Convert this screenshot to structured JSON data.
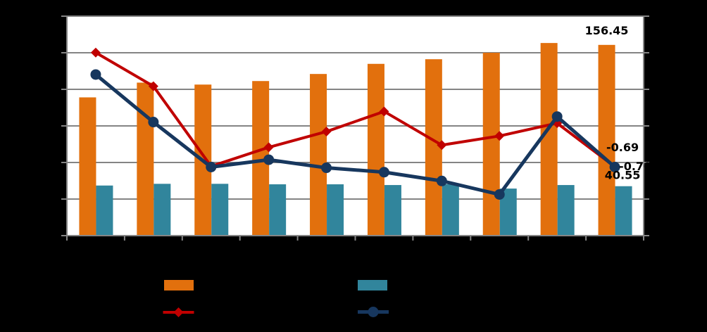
{
  "chart_data": {
    "type": "combo-bar-line",
    "n_groups": 10,
    "axes": {
      "primary_ylim": [
        0,
        180
      ],
      "primary_gridline_interval": 30,
      "secondary_ylim": [
        -2.575,
        3.425
      ],
      "gridlines": "horizontal",
      "axis_tick_labels_visible": false,
      "category_labels_visible": false
    },
    "colors": {
      "background": "#000000",
      "plot_background": "#FFFFFF",
      "grid": "#848484",
      "orange": "#E2700D",
      "teal": "#31859C",
      "red": "#C00000",
      "navy": "#17375E",
      "label_text": "#000000"
    },
    "series": [
      {
        "id": "orange-bars",
        "type": "bar",
        "axis": "primary",
        "color_key": "orange",
        "values": [
          113.4,
          125.5,
          123.9,
          126.8,
          132.6,
          140.9,
          144.7,
          150.0,
          158.0,
          156.45
        ]
      },
      {
        "id": "teal-bars",
        "type": "bar",
        "axis": "primary",
        "color_key": "teal",
        "values": [
          41.1,
          42.5,
          42.5,
          42.1,
          42.1,
          41.5,
          42.1,
          38.6,
          41.5,
          40.55
        ]
      },
      {
        "id": "red-line",
        "type": "line",
        "axis": "secondary",
        "marker": "diamond",
        "color_key": "red",
        "values": [
          2.43,
          1.51,
          -0.68,
          -0.16,
          0.27,
          0.82,
          -0.1,
          0.15,
          0.5,
          -0.69
        ]
      },
      {
        "id": "navy-line",
        "type": "line",
        "axis": "secondary",
        "marker": "circle",
        "color_key": "navy",
        "values": [
          1.83,
          0.53,
          -0.7,
          -0.5,
          -0.72,
          -0.84,
          -1.08,
          -1.45,
          0.68,
          -0.7
        ]
      }
    ],
    "data_labels": [
      {
        "series": "orange-bars",
        "point_index": 9,
        "text": "156.45"
      },
      {
        "series": "red-line",
        "point_index": 9,
        "text": "-0.69"
      },
      {
        "series": "navy-line",
        "point_index": 9,
        "text": "-0.70"
      },
      {
        "series": "teal-bars",
        "point_index": 9,
        "text": "40.55"
      }
    ],
    "legend": {
      "labels_visible": false,
      "entries": [
        {
          "series": "orange-bars",
          "swatch": "bar"
        },
        {
          "series": "teal-bars",
          "swatch": "bar"
        },
        {
          "series": "red-line",
          "swatch": "line-diamond"
        },
        {
          "series": "navy-line",
          "swatch": "line-circle"
        }
      ]
    }
  }
}
